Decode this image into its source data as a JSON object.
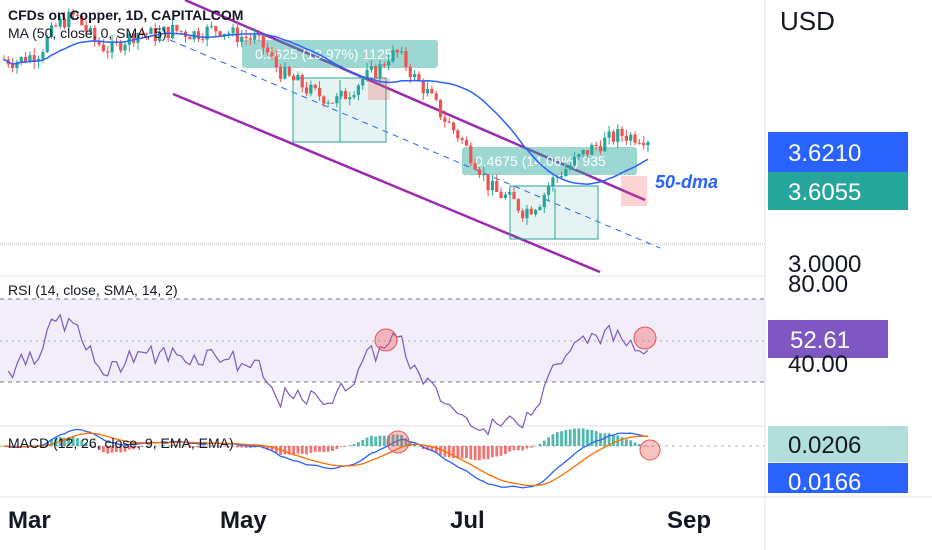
{
  "chart_data": {
    "type": "candlestick",
    "title": "CFDs on Copper, 1D, CAPITALCOM",
    "currency": "USD",
    "x_ticks": [
      "Mar",
      "May",
      "Jul",
      "Sep"
    ],
    "price_axis": {
      "labels": [
        "3.0000"
      ],
      "last_price": "3.6055",
      "high_tag": "3.6210",
      "range": [
        2.85,
        4.3
      ]
    },
    "indicators": {
      "ma": {
        "label": "MA (50, close, 0, SMA, 5)",
        "color": "#2962ff"
      },
      "rsi": {
        "label": "RSI (14, close, SMA, 14, 2)",
        "value": "52.61",
        "levels": [
          "80.00",
          "40.00"
        ],
        "color": "#7e57c2"
      },
      "macd": {
        "label": "MACD (12, 26, close, 9, EMA, EMA)",
        "macd_value": "0.0206",
        "signal_value": "0.0166"
      }
    },
    "annotations": {
      "measure_1": "0.5625 (13.97%) 1125",
      "measure_2": "0.4675 (14.06%) 935",
      "ma_note": "50-dma"
    },
    "colors": {
      "up": "#26a69a",
      "down": "#ef5350",
      "ma": "#2962ff",
      "channel": "#9c27b0",
      "rsi": "#7e57c2",
      "macd": "#2962ff",
      "signal": "#ff6d00",
      "price_tag": "#26a69a",
      "high_tag": "#2962ff",
      "rsi_tag": "#7e57c2"
    },
    "price_path": [
      4.03,
      4.02,
      4.03,
      4.05,
      4.07,
      4.15,
      4.22,
      4.25,
      4.27,
      4.2,
      4.14,
      4.1,
      4.08,
      4.12,
      4.15,
      4.18,
      4.17,
      4.16,
      4.18,
      4.19,
      4.18,
      4.17,
      4.18,
      4.19,
      4.2,
      4.18,
      4.16,
      4.15,
      4.14,
      4.1,
      4.02,
      3.96,
      3.92,
      3.9,
      3.86,
      3.84,
      3.82,
      3.8,
      3.83,
      3.87,
      3.92,
      3.95,
      3.98,
      4.05,
      4.06,
      4.0,
      3.92,
      3.87,
      3.8,
      3.72,
      3.66,
      3.6,
      3.52,
      3.45,
      3.35,
      3.3,
      3.28,
      3.25,
      3.2,
      3.22,
      3.26,
      3.35,
      3.4,
      3.44,
      3.48,
      3.52,
      3.55,
      3.58,
      3.6,
      3.62,
      3.61,
      3.61,
      3.6
    ]
  }
}
